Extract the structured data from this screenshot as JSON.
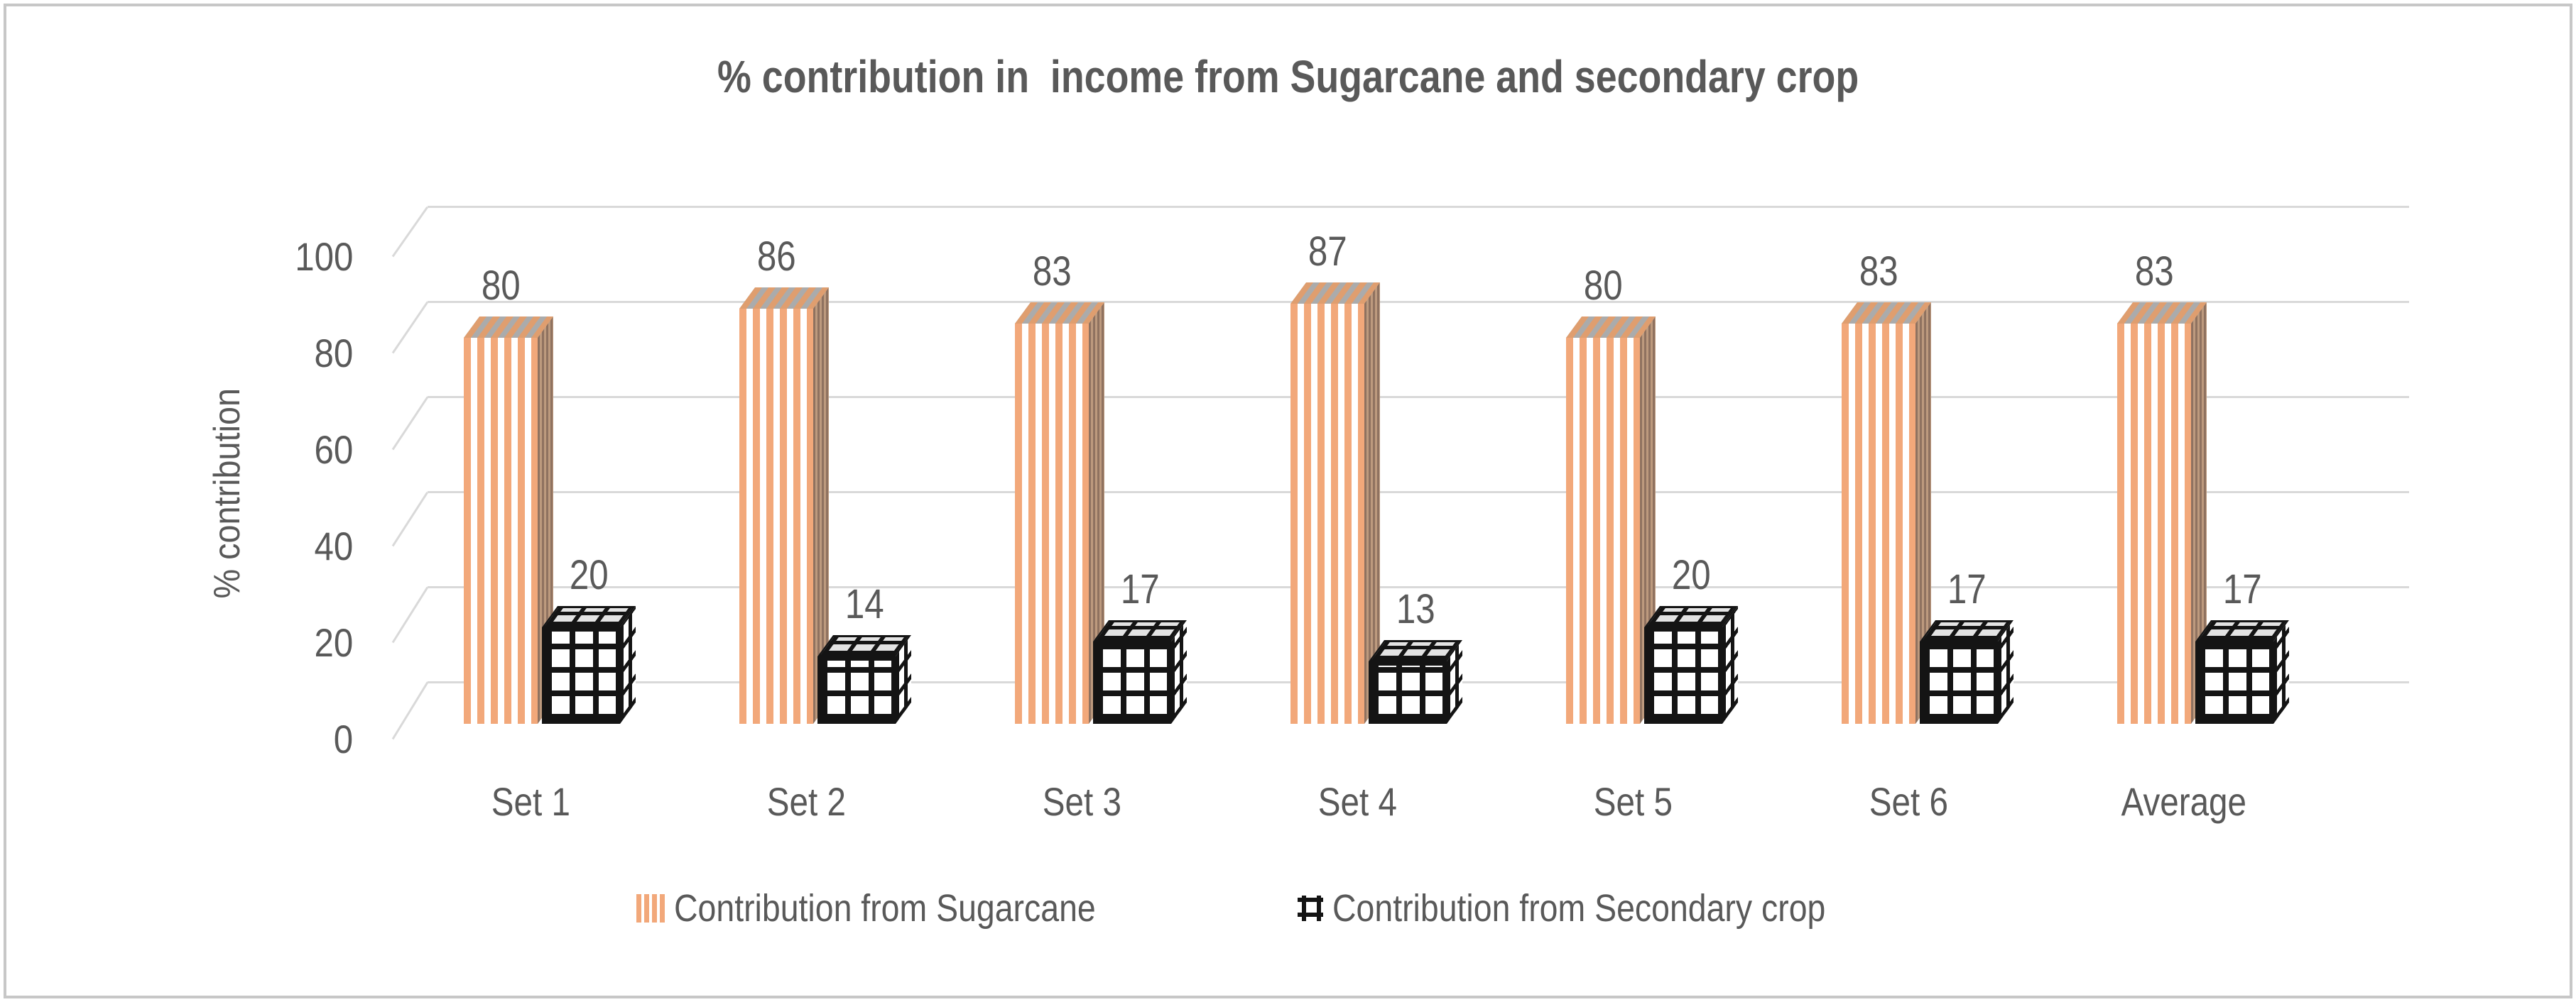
{
  "title": "% contribution in  income from Sugarcane and secondary crop",
  "y_axis": {
    "title": "% contribution",
    "ticks": [
      0,
      20,
      40,
      60,
      80,
      100
    ]
  },
  "chart_data": {
    "type": "bar",
    "style": "3d-column",
    "title": "% contribution in  income from Sugarcane and secondary crop",
    "categories": [
      "Set 1",
      "Set 2",
      "Set 3",
      "Set 4",
      "Set 5",
      "Set 6",
      "Average"
    ],
    "series": [
      {
        "name": "Contribution from Sugarcane",
        "pattern": "orange-vertical-stripes",
        "values": [
          80,
          86,
          83,
          87,
          80,
          83,
          83
        ]
      },
      {
        "name": "Contribution from Secondary crop",
        "pattern": "black-grid",
        "values": [
          20,
          14,
          17,
          13,
          20,
          17,
          17
        ]
      }
    ],
    "xlabel": "",
    "ylabel": "% contribution",
    "ylim": [
      0,
      100
    ],
    "grid": true,
    "data_labels": true,
    "legend_position": "bottom"
  },
  "legend": {
    "items": [
      {
        "label": "Contribution from Sugarcane",
        "swatch": "orange-stripes"
      },
      {
        "label": "Contribution from Secondary crop",
        "swatch": "black-grid"
      }
    ]
  },
  "colors": {
    "text": "#595959",
    "gridline": "#D9D9D9",
    "frame_border": "#C7C7C7",
    "sugarcane_orange": "#F2A87A",
    "sugarcane_top_gray": "#ABABAB",
    "sugarcane_side_brown": "#8F7260",
    "secondary_black": "#141414",
    "background": "#FFFFFF"
  }
}
